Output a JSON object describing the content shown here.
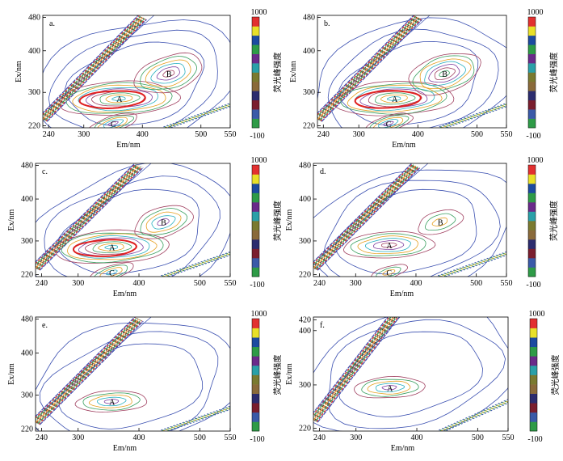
{
  "chart_data": [
    {
      "type": "contour",
      "panel_label": "a.",
      "xlabel": "Em/nm",
      "ylabel": "Ex/nm",
      "xlim": [
        230,
        550
      ],
      "ylim": [
        215,
        485
      ],
      "xticks": [
        240,
        300,
        400,
        500,
        550
      ],
      "yticks": [
        220,
        300,
        400,
        480
      ],
      "colorbar": {
        "title": "荧光峰强度",
        "max_label": "1000",
        "min_label": "-100",
        "range": [
          -100,
          1000
        ]
      },
      "peaks": [
        {
          "label": "A",
          "em": 360,
          "ex": 285,
          "strength": 1.0
        },
        {
          "label": "B",
          "em": 445,
          "ex": 345,
          "strength": 0.7
        },
        {
          "label": "C",
          "em": 350,
          "ex": 225,
          "strength": 0.55
        }
      ]
    },
    {
      "type": "contour",
      "panel_label": "b.",
      "xlabel": "Em/nm",
      "ylabel": "Ex/nm",
      "xlim": [
        230,
        550
      ],
      "ylim": [
        215,
        485
      ],
      "xticks": [
        240,
        300,
        400,
        500,
        550
      ],
      "yticks": [
        220,
        300,
        400,
        480
      ],
      "colorbar": {
        "title": "荧光峰强度",
        "max_label": "1000",
        "min_label": "-100",
        "range": [
          -100,
          1000
        ]
      },
      "peaks": [
        {
          "label": "A",
          "em": 360,
          "ex": 285,
          "strength": 1.0
        },
        {
          "label": "B",
          "em": 445,
          "ex": 345,
          "strength": 0.75
        },
        {
          "label": "C",
          "em": 350,
          "ex": 225,
          "strength": 0.55
        }
      ]
    },
    {
      "type": "contour",
      "panel_label": "c.",
      "xlabel": "Em/nm",
      "ylabel": "Ex/nm",
      "xlim": [
        230,
        550
      ],
      "ylim": [
        215,
        485
      ],
      "xticks": [
        240,
        300,
        400,
        500,
        550
      ],
      "yticks": [
        220,
        300,
        400,
        480
      ],
      "colorbar": {
        "title": "荧光峰强度",
        "max_label": "1000",
        "min_label": "-100",
        "range": [
          -100,
          1000
        ]
      },
      "peaks": [
        {
          "label": "A",
          "em": 355,
          "ex": 285,
          "strength": 0.95
        },
        {
          "label": "B",
          "em": 440,
          "ex": 345,
          "strength": 0.55
        },
        {
          "label": "C",
          "em": 355,
          "ex": 225,
          "strength": 0.45
        }
      ]
    },
    {
      "type": "contour",
      "panel_label": "d.",
      "xlabel": "Em/nm",
      "ylabel": "Ex/nm",
      "xlim": [
        230,
        550
      ],
      "ylim": [
        215,
        485
      ],
      "xticks": [
        240,
        300,
        400,
        500,
        550
      ],
      "yticks": [
        220,
        300,
        400,
        480
      ],
      "colorbar": {
        "title": "荧光峰强度",
        "max_label": "1000",
        "min_label": "-100",
        "range": [
          -100,
          1000
        ]
      },
      "peaks": [
        {
          "label": "A",
          "em": 355,
          "ex": 290,
          "strength": 0.7
        },
        {
          "label": "B",
          "em": 440,
          "ex": 345,
          "strength": 0.35
        },
        {
          "label": "C",
          "em": 355,
          "ex": 225,
          "strength": 0.3
        }
      ]
    },
    {
      "type": "contour",
      "panel_label": "e.",
      "xlabel": "Em/nm",
      "ylabel": "Ex/nm",
      "xlim": [
        230,
        550
      ],
      "ylim": [
        215,
        485
      ],
      "xticks": [
        240,
        300,
        400,
        500,
        550
      ],
      "yticks": [
        220,
        300,
        400,
        480
      ],
      "colorbar": {
        "title": "荧光峰强度",
        "max_label": "1000",
        "min_label": "-100",
        "range": [
          -100,
          1000
        ]
      },
      "peaks": [
        {
          "label": "A",
          "em": 355,
          "ex": 285,
          "strength": 0.5
        }
      ]
    },
    {
      "type": "contour",
      "panel_label": "f.",
      "xlabel": "Em/nm",
      "ylabel": "Ex/nm",
      "xlim": [
        230,
        550
      ],
      "ylim": [
        215,
        425
      ],
      "xticks": [
        240,
        300,
        400,
        500,
        550
      ],
      "yticks": [
        220,
        300,
        400,
        420
      ],
      "colorbar": {
        "title": "荧光峰强度",
        "max_label": "1000",
        "min_label": "-100",
        "range": [
          -100,
          1000
        ]
      },
      "peaks": [
        {
          "label": "A",
          "em": 355,
          "ex": 295,
          "strength": 0.5
        }
      ]
    }
  ],
  "colors": {
    "colorbar_stops": [
      "#2e9b47",
      "#3a5aa8",
      "#7a1e2e",
      "#2c2c6e",
      "#8a6a3a",
      "#7a7a30",
      "#2aa0a8",
      "#6a2a8a",
      "#2e9b47",
      "#1c4aa0",
      "#e8e028",
      "#e23030"
    ],
    "background_contour": "#3a4fb0",
    "mid_contour": "#a04060",
    "inner_contours": [
      "#3aa060",
      "#e6a020",
      "#2ab0c0",
      "#8040a0"
    ],
    "peak_core": "#e02020",
    "scatter_band": "#6a2a2a"
  }
}
